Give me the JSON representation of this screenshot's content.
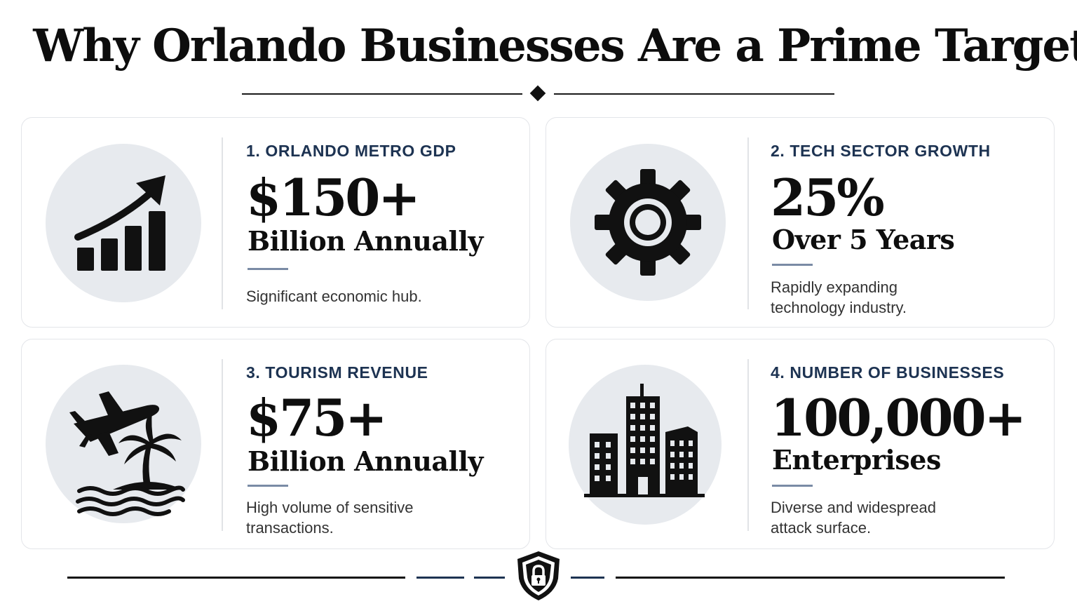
{
  "header": {
    "title": "Why Orlando Businesses Are a Prime Target"
  },
  "cards": [
    {
      "label": "1. ORLANDO METRO GDP",
      "value": "$150+",
      "unit": "Billion Annually",
      "description": "Significant economic hub.",
      "icon": "growth-chart-icon"
    },
    {
      "label": "2. TECH SECTOR GROWTH",
      "value": "25%",
      "unit": "Over 5 Years",
      "description": "Rapidly expanding technology industry.",
      "icon": "gear-icon"
    },
    {
      "label": "3. TOURISM REVENUE",
      "value": "$75+",
      "unit": "Billion Annually",
      "description": "High volume of sensitive transactions.",
      "icon": "airplane-palm-island-icon"
    },
    {
      "label": "4. NUMBER OF BUSINESSES",
      "value": "100,000+",
      "unit": "Enterprises",
      "description": "Diverse and widespread attack surface.",
      "icon": "office-buildings-icon"
    }
  ],
  "footer": {
    "icon": "shield-lock-icon"
  },
  "colors": {
    "accent_navy": "#1d3352",
    "accent_slate": "#7a8ba5",
    "icon_bg": "#e7eaee",
    "icon_fg": "#111111"
  }
}
